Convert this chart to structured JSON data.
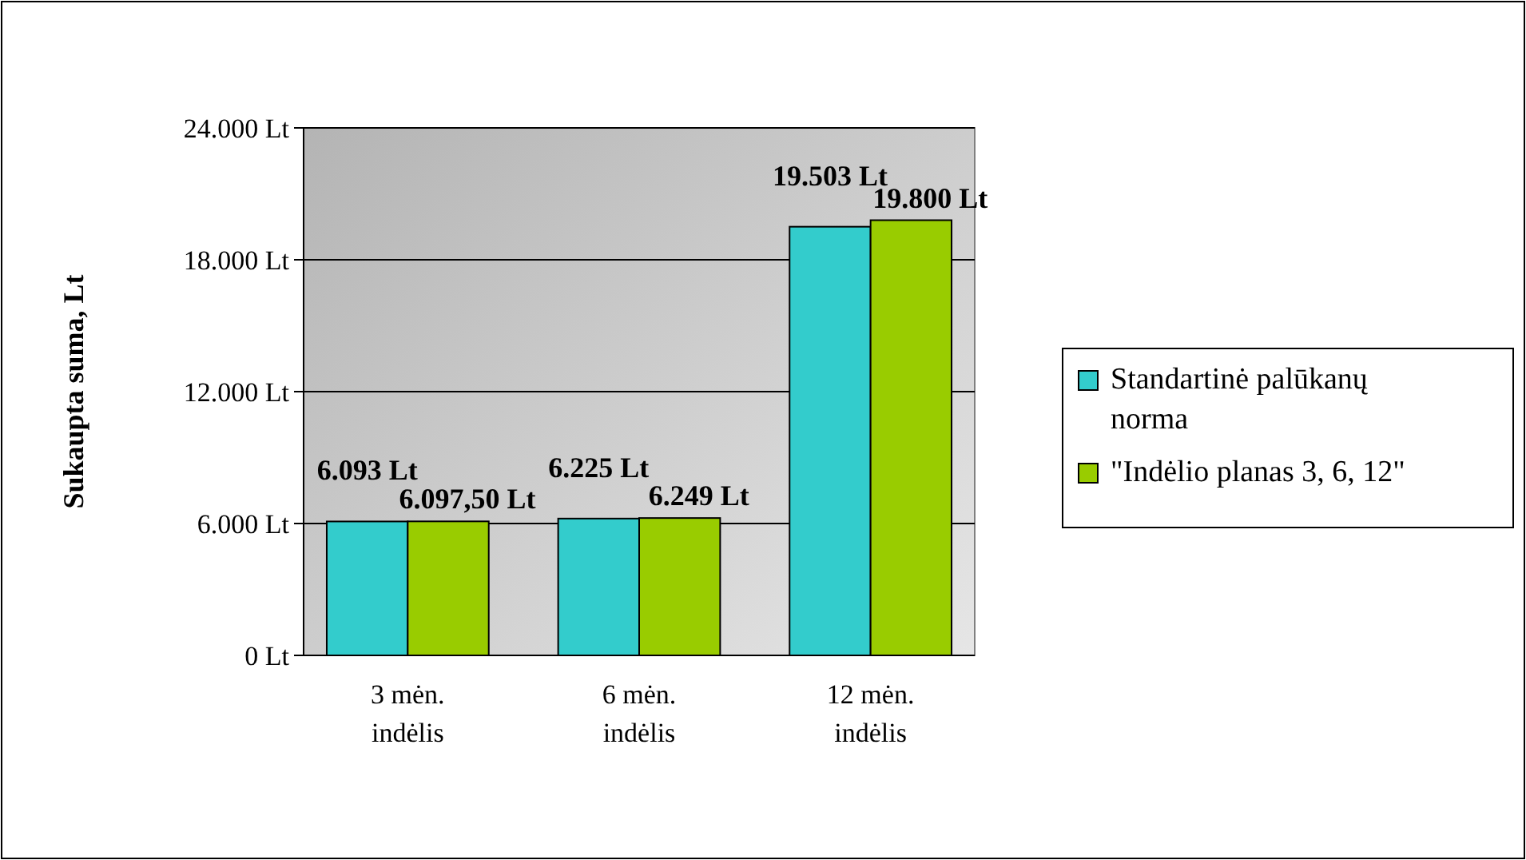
{
  "chart_data": {
    "type": "bar",
    "ylabel": "Sukaupta suma, Lt",
    "categories": [
      "3 mėn. indėlis",
      "6 mėn. indėlis",
      "12 mėn. indėlis"
    ],
    "series": [
      {
        "name": "Standartinė palūkanų norma",
        "color": "#33cccc",
        "values": [
          6093,
          6225,
          19503
        ],
        "value_labels": [
          "6.093 Lt",
          "6.225 Lt",
          "19.503 Lt"
        ]
      },
      {
        "name": "\"Indėlio planas 3, 6, 12\"",
        "color": "#99cc00",
        "values": [
          6097.5,
          6249,
          19800
        ],
        "value_labels": [
          "6.097,50 Lt",
          "6.249 Lt",
          "19.800 Lt"
        ]
      }
    ],
    "ylim": [
      0,
      24000
    ],
    "yticks": [
      {
        "value": 0,
        "label": "0 Lt"
      },
      {
        "value": 6000,
        "label": "6.000 Lt"
      },
      {
        "value": 12000,
        "label": "12.000 Lt"
      },
      {
        "value": 18000,
        "label": "18.000 Lt"
      },
      {
        "value": 24000,
        "label": "24.000 Lt"
      }
    ],
    "grid": "y",
    "legend": "right"
  }
}
